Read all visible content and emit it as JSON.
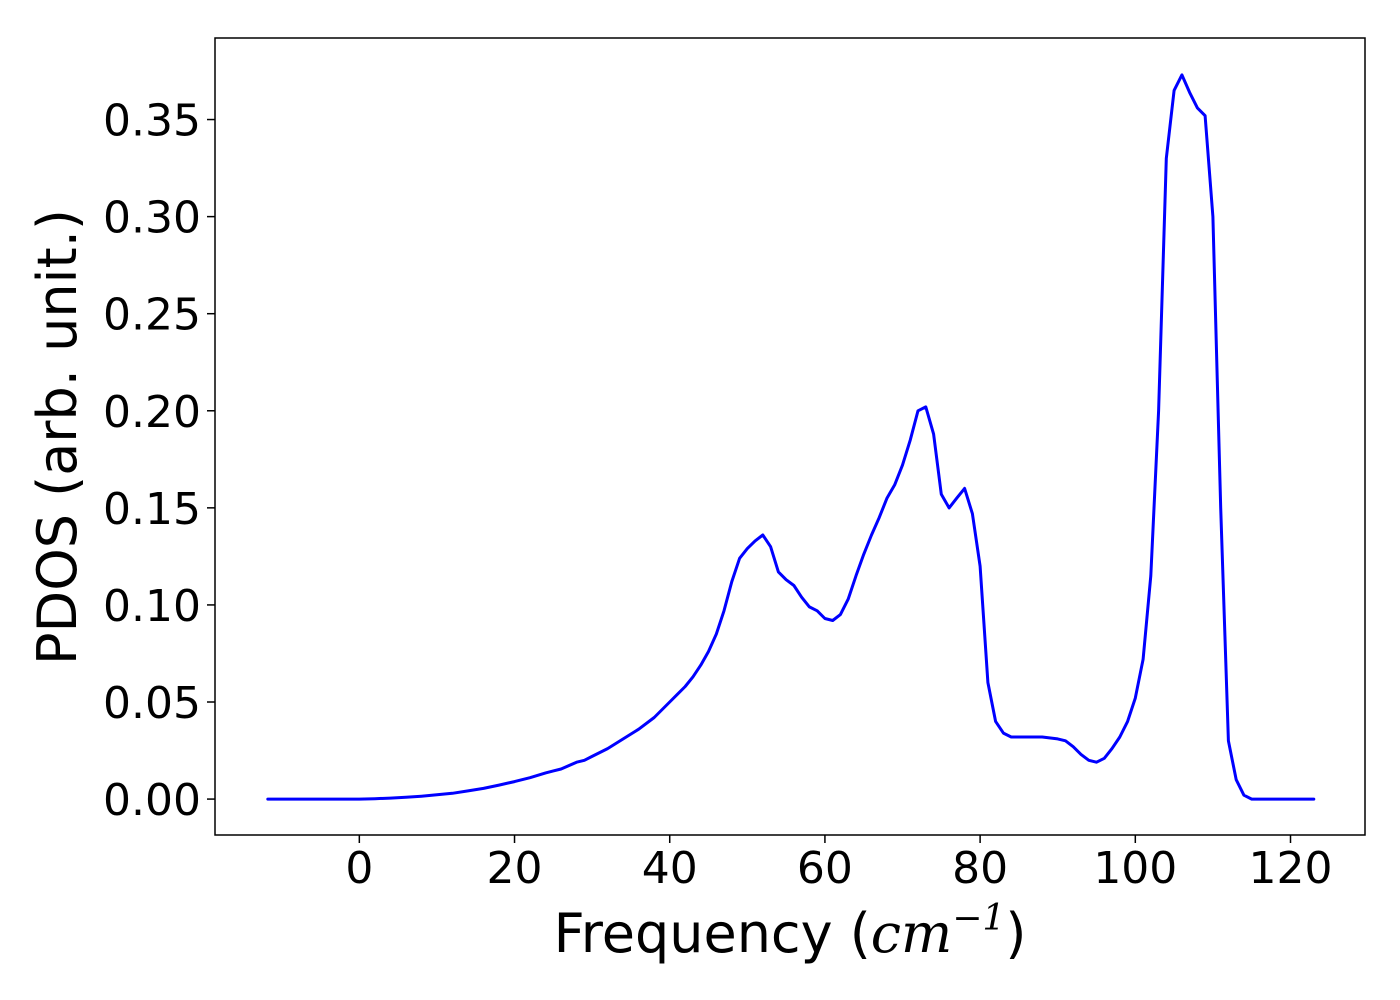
{
  "chart_data": {
    "type": "line",
    "xlabel_text": "Frequency (",
    "xlabel_math": "cm",
    "xlabel_exp": "−1",
    "xlabel_close": ")",
    "ylabel": "PDOS (arb. unit.)",
    "xlim": [
      -18.6,
      129.6
    ],
    "ylim": [
      -0.0185,
      0.392
    ],
    "xticks": [
      0,
      20,
      40,
      60,
      80,
      100,
      120
    ],
    "xtick_labels": [
      "0",
      "20",
      "40",
      "60",
      "80",
      "100",
      "120"
    ],
    "yticks": [
      0.0,
      0.05,
      0.1,
      0.15,
      0.2,
      0.25,
      0.3,
      0.35
    ],
    "ytick_labels": [
      "0.00",
      "0.05",
      "0.10",
      "0.15",
      "0.20",
      "0.25",
      "0.30",
      "0.35"
    ],
    "grid": false,
    "line_color": "#0000ff",
    "series": [
      {
        "x": [
          -11.8,
          -6,
          0,
          2,
          4,
          6,
          8,
          10,
          12,
          14,
          16,
          18,
          20,
          22,
          24,
          25,
          26,
          28,
          29,
          30,
          32,
          34,
          36,
          38,
          40,
          41,
          42,
          43,
          44,
          45,
          46,
          47,
          48,
          49,
          50,
          51,
          52,
          53,
          54,
          55,
          56,
          57,
          58,
          59,
          60,
          61,
          62,
          63,
          64,
          65,
          66,
          67,
          68,
          69,
          70,
          71,
          72,
          73,
          74,
          75,
          76,
          77,
          78,
          79,
          80,
          81,
          82,
          83,
          84,
          86,
          88,
          90,
          91,
          92,
          93,
          94,
          95,
          96,
          97,
          98,
          99,
          100,
          101,
          102,
          103,
          104,
          105,
          106,
          107,
          108,
          109,
          110,
          111,
          112,
          113,
          114,
          115,
          116,
          120,
          123
        ],
        "y": [
          0,
          0,
          0,
          0.0002,
          0.0005,
          0.0009,
          0.0015,
          0.0022,
          0.003,
          0.0042,
          0.0055,
          0.0072,
          0.009,
          0.011,
          0.0135,
          0.0145,
          0.0155,
          0.019,
          0.02,
          0.022,
          0.026,
          0.031,
          0.036,
          0.042,
          0.05,
          0.054,
          0.058,
          0.063,
          0.069,
          0.076,
          0.085,
          0.097,
          0.112,
          0.124,
          0.129,
          0.133,
          0.136,
          0.13,
          0.117,
          0.113,
          0.11,
          0.104,
          0.099,
          0.097,
          0.093,
          0.092,
          0.095,
          0.103,
          0.115,
          0.126,
          0.136,
          0.145,
          0.155,
          0.162,
          0.172,
          0.185,
          0.2,
          0.202,
          0.188,
          0.157,
          0.15,
          0.155,
          0.16,
          0.147,
          0.12,
          0.06,
          0.04,
          0.034,
          0.032,
          0.032,
          0.032,
          0.031,
          0.03,
          0.027,
          0.023,
          0.02,
          0.019,
          0.021,
          0.026,
          0.032,
          0.04,
          0.052,
          0.072,
          0.115,
          0.2,
          0.33,
          0.365,
          0.373,
          0.364,
          0.356,
          0.352,
          0.3,
          0.15,
          0.03,
          0.01,
          0.002,
          0,
          0,
          0,
          0
        ]
      }
    ]
  }
}
